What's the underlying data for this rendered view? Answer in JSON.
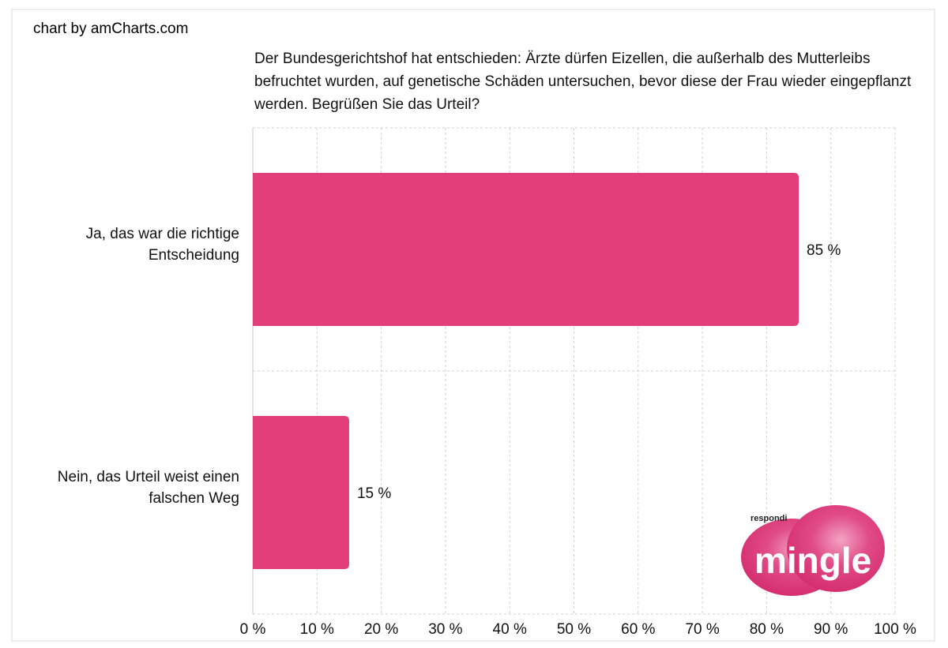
{
  "credit": "chart by amCharts.com",
  "logo": {
    "small": "respondi",
    "big": "mingle"
  },
  "colors": {
    "bar": "#e33d7a",
    "grid": "#d0d0d0",
    "logo": "#dc2f74"
  },
  "chart_data": {
    "type": "bar",
    "orientation": "horizontal",
    "title": "Der Bundesgerichtshof hat entschieden: Ärzte dürfen Eizellen, die außerhalb des Mutterleibs befruchtet wurden, auf genetische Schäden untersuchen, bevor diese der Frau wieder eingepflanzt werden. Begrüßen Sie das Urteil?",
    "categories": [
      [
        "Ja, das war die richtige",
        "Entscheidung"
      ],
      [
        "Nein, das Urteil weist einen",
        "falschen Weg"
      ]
    ],
    "values": [
      85,
      15
    ],
    "value_labels": [
      "85 %",
      "15 %"
    ],
    "xlim": [
      0,
      100
    ],
    "x_ticks": [
      "0 %",
      "10 %",
      "20 %",
      "30 %",
      "40 %",
      "50 %",
      "60 %",
      "70 %",
      "80 %",
      "90 %",
      "100 %"
    ],
    "grid": true,
    "legend": "none"
  }
}
